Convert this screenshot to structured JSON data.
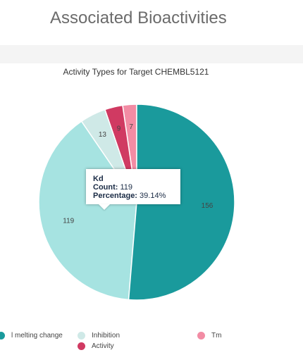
{
  "page": {
    "title": "Associated Bioactivities"
  },
  "chart_data": {
    "type": "pie",
    "title": "Activity Types for Target CHEMBL5121",
    "slices": [
      {
        "name": "Tm",
        "value": 7,
        "color": "#f28ca4"
      },
      {
        "name": "Activity",
        "value": 9,
        "color": "#d03a62"
      },
      {
        "name": "Inhibition",
        "value": 13,
        "color": "#cfe9e7"
      },
      {
        "name": "Kd",
        "value": 119,
        "color": "#a6e3e1"
      },
      {
        "name": "Thermal melting change",
        "value": 156,
        "color": "#1a9a9c"
      }
    ],
    "legend": {
      "placement": "bottom",
      "items": [
        {
          "label": "l melting change",
          "color": "#1a9a9c"
        },
        {
          "label": "Inhibition",
          "color": "#cfe9e7"
        },
        {
          "label": "Tm",
          "color": "#f28ca4"
        },
        {
          "label": "Activity",
          "color": "#d03a62"
        }
      ]
    }
  },
  "tooltip": {
    "name": "Kd",
    "count_label": "Count:",
    "count_value": "119",
    "percentage_label": "Percentage:",
    "percentage_value": "39.14%"
  }
}
